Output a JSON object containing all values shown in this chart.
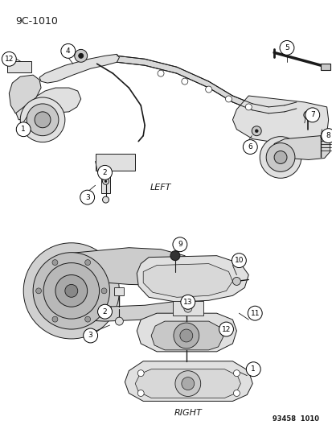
{
  "title": "9C-1010",
  "background_color": "#ffffff",
  "text_color": "#000000",
  "label_left": "LEFT",
  "label_right": "RIGHT",
  "watermark": "93458  1010",
  "fig_width": 4.14,
  "fig_height": 5.33,
  "dpi": 100
}
